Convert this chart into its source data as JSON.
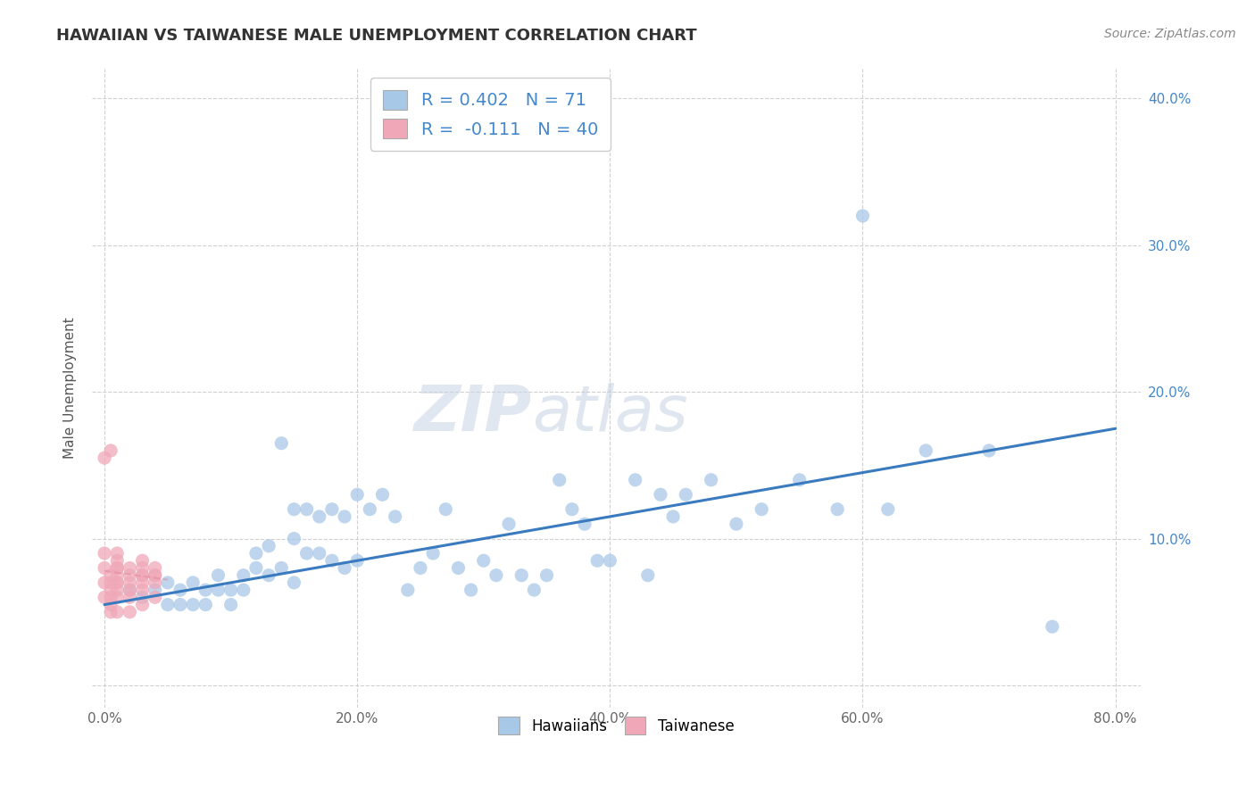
{
  "title": "HAWAIIAN VS TAIWANESE MALE UNEMPLOYMENT CORRELATION CHART",
  "source": "Source: ZipAtlas.com",
  "ylabel": "Male Unemployment",
  "xlim": [
    -0.01,
    0.82
  ],
  "ylim": [
    -0.015,
    0.42
  ],
  "xticks": [
    0.0,
    0.2,
    0.4,
    0.6,
    0.8
  ],
  "yticks": [
    0.0,
    0.1,
    0.2,
    0.3,
    0.4
  ],
  "xtick_labels": [
    "0.0%",
    "20.0%",
    "40.0%",
    "60.0%",
    "80.0%"
  ],
  "ytick_labels": [
    "",
    "10.0%",
    "20.0%",
    "30.0%",
    "40.0%"
  ],
  "hawaiian_R": 0.402,
  "hawaiian_N": 71,
  "taiwanese_R": -0.111,
  "taiwanese_N": 40,
  "hawaiian_color": "#a8c8e8",
  "taiwanese_color": "#f0a8b8",
  "trend_color": "#3a7abf",
  "taiwanese_trend_color": "#e08898",
  "watermark_zip": "ZIP",
  "watermark_atlas": "atlas",
  "background_color": "#ffffff",
  "hawaiians_x": [
    0.02,
    0.03,
    0.04,
    0.05,
    0.05,
    0.06,
    0.06,
    0.07,
    0.07,
    0.08,
    0.08,
    0.09,
    0.09,
    0.1,
    0.1,
    0.11,
    0.11,
    0.12,
    0.12,
    0.13,
    0.13,
    0.14,
    0.14,
    0.15,
    0.15,
    0.15,
    0.16,
    0.16,
    0.17,
    0.17,
    0.18,
    0.18,
    0.19,
    0.19,
    0.2,
    0.2,
    0.21,
    0.22,
    0.23,
    0.24,
    0.25,
    0.26,
    0.27,
    0.28,
    0.29,
    0.3,
    0.31,
    0.32,
    0.33,
    0.34,
    0.35,
    0.36,
    0.37,
    0.38,
    0.39,
    0.4,
    0.42,
    0.43,
    0.44,
    0.45,
    0.46,
    0.48,
    0.5,
    0.52,
    0.55,
    0.58,
    0.6,
    0.62,
    0.65,
    0.7,
    0.75
  ],
  "hawaiians_y": [
    0.065,
    0.06,
    0.065,
    0.055,
    0.07,
    0.055,
    0.065,
    0.055,
    0.07,
    0.055,
    0.065,
    0.065,
    0.075,
    0.055,
    0.065,
    0.065,
    0.075,
    0.08,
    0.09,
    0.075,
    0.095,
    0.165,
    0.08,
    0.1,
    0.12,
    0.07,
    0.12,
    0.09,
    0.115,
    0.09,
    0.12,
    0.085,
    0.115,
    0.08,
    0.13,
    0.085,
    0.12,
    0.13,
    0.115,
    0.065,
    0.08,
    0.09,
    0.12,
    0.08,
    0.065,
    0.085,
    0.075,
    0.11,
    0.075,
    0.065,
    0.075,
    0.14,
    0.12,
    0.11,
    0.085,
    0.085,
    0.14,
    0.075,
    0.13,
    0.115,
    0.13,
    0.14,
    0.11,
    0.12,
    0.14,
    0.12,
    0.32,
    0.12,
    0.16,
    0.16,
    0.04
  ],
  "taiwanese_x": [
    0.0,
    0.0,
    0.0,
    0.0,
    0.0,
    0.01,
    0.01,
    0.01,
    0.01,
    0.01,
    0.01,
    0.01,
    0.01,
    0.01,
    0.01,
    0.02,
    0.02,
    0.02,
    0.02,
    0.02,
    0.02,
    0.03,
    0.03,
    0.03,
    0.03,
    0.03,
    0.03,
    0.03,
    0.04,
    0.04,
    0.04,
    0.04,
    0.04,
    0.005,
    0.005,
    0.005,
    0.005,
    0.005,
    0.005,
    0.005
  ],
  "taiwanese_y": [
    0.06,
    0.07,
    0.08,
    0.09,
    0.155,
    0.05,
    0.06,
    0.065,
    0.07,
    0.07,
    0.075,
    0.08,
    0.08,
    0.085,
    0.09,
    0.05,
    0.06,
    0.065,
    0.07,
    0.075,
    0.08,
    0.055,
    0.065,
    0.07,
    0.075,
    0.075,
    0.08,
    0.085,
    0.06,
    0.07,
    0.075,
    0.075,
    0.08,
    0.05,
    0.055,
    0.06,
    0.065,
    0.07,
    0.075,
    0.16
  ],
  "trend_x_start": 0.0,
  "trend_x_end": 0.8,
  "trend_y_start": 0.055,
  "trend_y_end": 0.175,
  "taiwanese_trend_x_start": 0.0,
  "taiwanese_trend_x_end": 0.05,
  "taiwanese_trend_y_start": 0.078,
  "taiwanese_trend_y_end": 0.072,
  "grid_color": "#d0d0d0",
  "tick_color": "#4488cc",
  "title_fontsize": 13,
  "source_fontsize": 10,
  "tick_fontsize": 11,
  "ylabel_fontsize": 11
}
